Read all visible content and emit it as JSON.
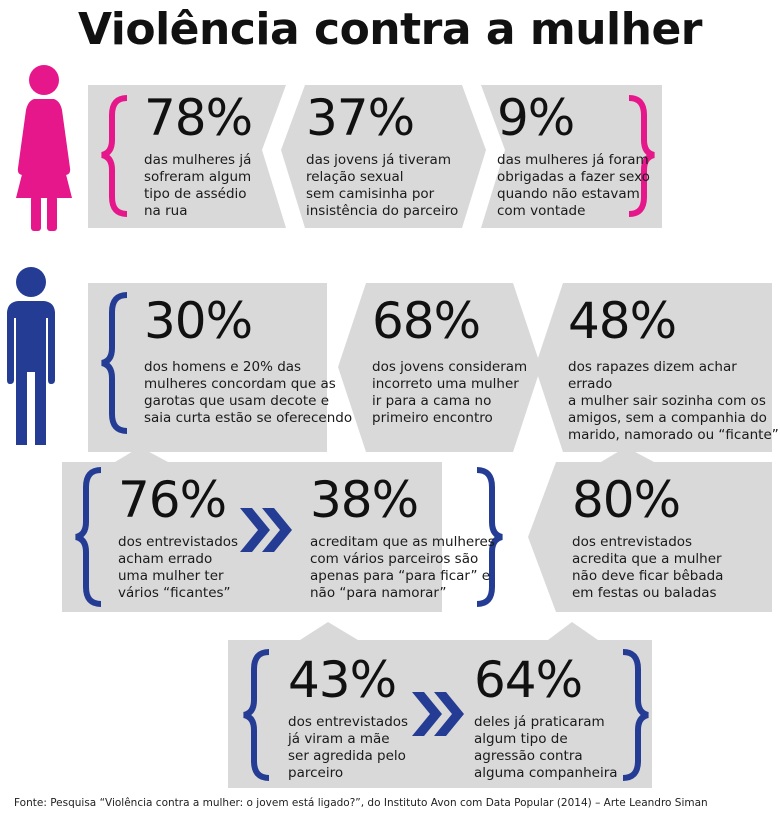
{
  "title": "Violência contra a mulher",
  "colors": {
    "pink": "#E6168B",
    "blue": "#253C94",
    "gray": "#D9D9D9"
  },
  "icons": {
    "woman": "woman-figure-icon",
    "man": "man-figure-icon",
    "arrow": "double-chevron-right-icon",
    "bracket": "curly-bracket-icon"
  },
  "women_stats": [
    {
      "percent": "78%",
      "text": "das mulheres já\nsofreram algum\ntipo de assédio\nna rua"
    },
    {
      "percent": "37%",
      "text": "das jovens já tiveram\nrelação sexual\nsem camisinha por\ninsistência do parceiro"
    },
    {
      "percent": "9%",
      "text": "das mulheres já foram\nobrigadas a fazer sexo\nquando não estavam\ncom vontade"
    }
  ],
  "men_row1": [
    {
      "percent": "30%",
      "text": "dos homens e 20% das\nmulheres concordam que as\ngarotas que usam decote e\nsaia curta estão se oferecendo"
    },
    {
      "percent": "68%",
      "text": "dos jovens consideram\nincorreto uma mulher\nir para a cama no\nprimeiro encontro"
    },
    {
      "percent": "48%",
      "text": "dos rapazes dizem achar errado\na mulher sair sozinha com os\namigos, sem a companhia do\nmarido, namorado ou “ficante”"
    }
  ],
  "men_row2": [
    {
      "percent": "76%",
      "text": "dos entrevistados\nacham errado\numa mulher ter\nvários “ficantes”"
    },
    {
      "percent": "38%",
      "text": "acreditam que as mulheres\ncom vários parceiros são\napenas para “para ficar” e\nnão “para namorar”"
    },
    {
      "percent": "80%",
      "text": "dos entrevistados\nacredita que a mulher\nnão deve ficar bêbada\nem festas ou baladas"
    }
  ],
  "men_row3": [
    {
      "percent": "43%",
      "text": "dos entrevistados\njá viram a mãe\nser agredida pelo\nparceiro"
    },
    {
      "percent": "64%",
      "text": "deles já praticaram\nalgum tipo de\nagressão contra\nalguma companheira"
    }
  ],
  "source": "Fonte: Pesquisa “Violência contra a mulher: o jovem está ligado?”, do Instituto Avon com Data Popular (2014) – Arte Leandro Siman"
}
